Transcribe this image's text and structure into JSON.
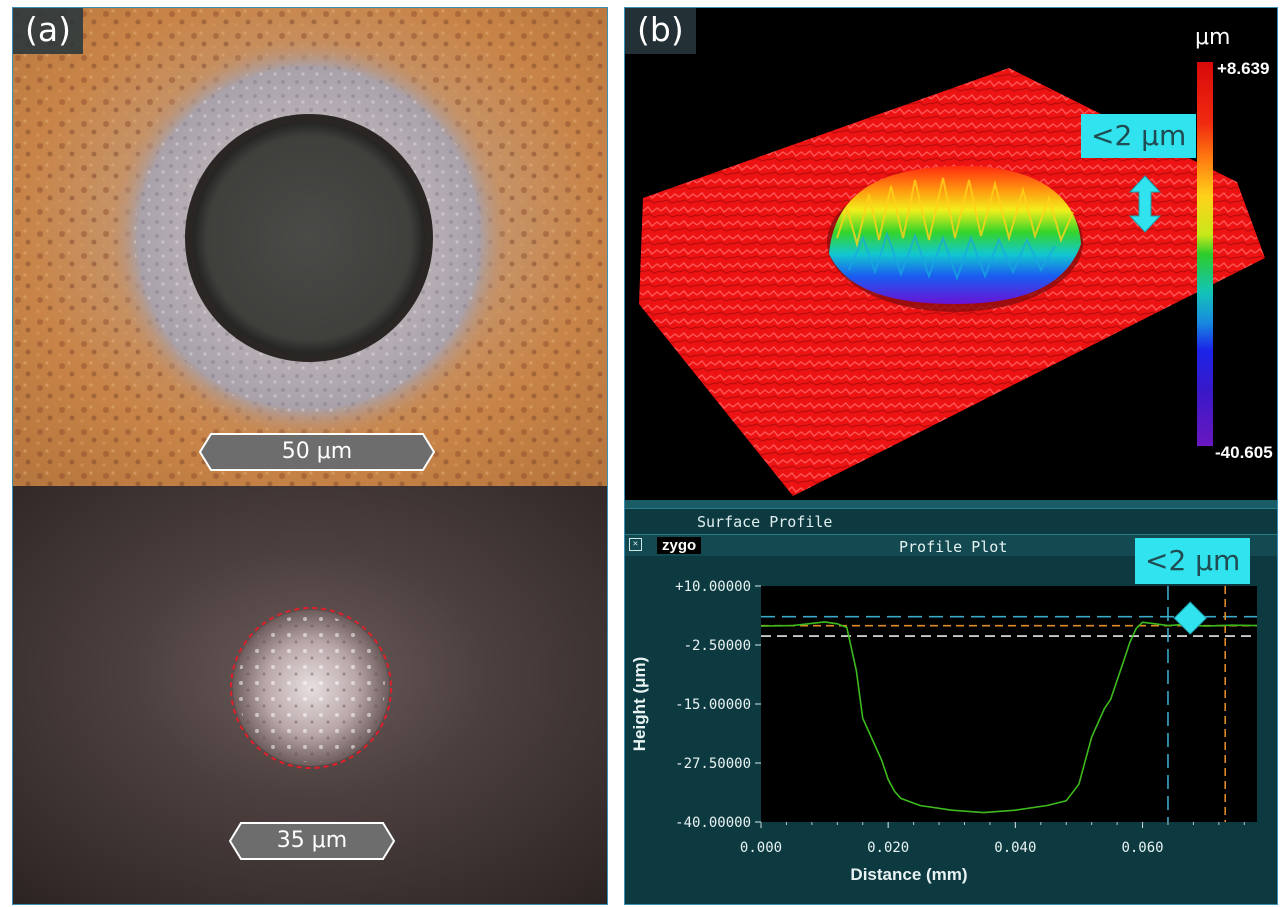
{
  "panel_a": {
    "label": "(a)",
    "scale_top": "50 μm",
    "scale_bottom": "35 μm"
  },
  "panel_b": {
    "label": "(b)",
    "colorbar_unit": "μm",
    "colorbar_max": "+8.639",
    "colorbar_min": "-40.605",
    "callout_3d": "<2 μm",
    "surface_title": "Surface Profile",
    "brand": "zygo",
    "plot_title": "Profile Plot",
    "callout_plot": "<2 μm",
    "colors": {
      "surface_red": "#ff1a1a",
      "callout_cyan": "#31e3ee",
      "trace_green": "#3dbb1d",
      "cursor_blue": "#3aa8c8",
      "cursor_orange": "#e08a2a"
    }
  },
  "chart_data": {
    "type": "line",
    "xlabel": "Distance (mm)",
    "ylabel": "Height (μm)",
    "xlim": [
      0,
      0.078
    ],
    "ylim": [
      -40,
      10
    ],
    "xticks": [
      "0.000",
      "0.020",
      "0.040",
      "0.060"
    ],
    "yticks": [
      "+10.00000",
      "-2.50000",
      "-15.00000",
      "-27.50000",
      "-40.00000"
    ],
    "x": [
      0.0,
      0.005,
      0.01,
      0.012,
      0.0135,
      0.015,
      0.016,
      0.017,
      0.018,
      0.019,
      0.02,
      0.021,
      0.022,
      0.025,
      0.03,
      0.035,
      0.04,
      0.045,
      0.048,
      0.05,
      0.051,
      0.052,
      0.053,
      0.054,
      0.055,
      0.056,
      0.057,
      0.058,
      0.059,
      0.06,
      0.062,
      0.064,
      0.066,
      0.07,
      0.074,
      0.078
    ],
    "values": [
      1.5,
      1.6,
      2.4,
      2.0,
      1.2,
      -8,
      -18,
      -21,
      -24,
      -27,
      -31,
      -33.5,
      -35,
      -36.5,
      -37.5,
      -38,
      -37.5,
      -36.5,
      -35.5,
      -32,
      -27,
      -22,
      -19,
      -16,
      -14,
      -10,
      -6,
      -2,
      1.0,
      2.3,
      2.0,
      1.6,
      1.8,
      1.5,
      1.7,
      1.6
    ],
    "cursor_lines": {
      "blue_vertical_x": 0.064,
      "orange_vertical_x": 0.073,
      "blue_horizontal_y": 3.5,
      "orange_horizontal_y": 1.6,
      "white_horizontal_y": -0.6
    }
  }
}
